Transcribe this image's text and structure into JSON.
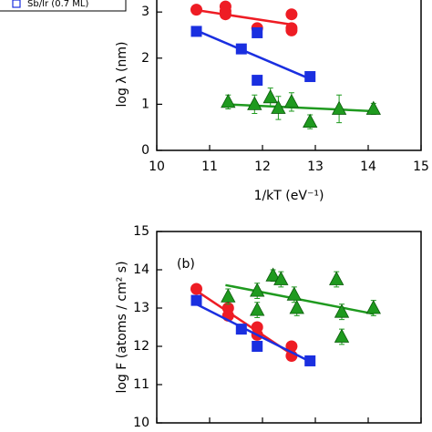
{
  "chart_data": [
    {
      "type": "scatter",
      "xlabel": "1/kT (eV⁻¹)",
      "ylabel": "log λ (nm)",
      "xlim": [
        10,
        15
      ],
      "xticks": [
        10,
        11,
        12,
        13,
        14,
        15
      ],
      "ylim": [
        0,
        3.3
      ],
      "yticks": [
        0,
        1,
        2,
        3
      ],
      "series": [
        {
          "color": "#ee1c24",
          "marker": "circle",
          "x": [
            10.75,
            11.3,
            11.3,
            11.3,
            11.9,
            12.55,
            12.55,
            12.55
          ],
          "values": [
            3.05,
            3.12,
            3.02,
            2.95,
            2.65,
            2.95,
            2.65,
            2.6
          ],
          "fit_x": [
            10.7,
            12.6
          ],
          "fit_y": [
            3.05,
            2.72
          ]
        },
        {
          "name": "Sb/Ir (0.7 ML)",
          "color": "#1a2fe0",
          "marker": "square",
          "x": [
            10.75,
            11.6,
            11.9,
            11.9,
            12.9
          ],
          "values": [
            2.58,
            2.2,
            2.55,
            1.52,
            1.6
          ],
          "fit_x": [
            10.75,
            12.9
          ],
          "fit_y": [
            2.6,
            1.55
          ]
        },
        {
          "color": "#1f9a1f",
          "marker": "triangle",
          "x": [
            11.35,
            11.85,
            12.15,
            12.3,
            12.55,
            12.9,
            13.45,
            14.1
          ],
          "values": [
            1.05,
            1.0,
            1.15,
            0.92,
            1.05,
            0.62,
            0.9,
            0.9
          ],
          "errors": [
            0.15,
            0.2,
            0.2,
            0.25,
            0.2,
            0.15,
            0.3,
            0.12
          ],
          "fit_x": [
            11.3,
            14.1
          ],
          "fit_y": [
            1.0,
            0.85
          ]
        }
      ]
    },
    {
      "type": "scatter",
      "ylabel": "log F (atoms / cm² s)",
      "annotation": "(b)",
      "xlim": [
        10,
        15
      ],
      "xticks": [
        10,
        11,
        12,
        13,
        14,
        15
      ],
      "ylim": [
        10,
        15
      ],
      "yticks": [
        10,
        11,
        12,
        13,
        14,
        15
      ],
      "series": [
        {
          "color": "#ee1c24",
          "marker": "circle",
          "x": [
            10.75,
            11.35,
            11.35,
            11.9,
            11.9,
            12.55,
            12.55
          ],
          "values": [
            13.5,
            13.0,
            12.8,
            12.5,
            12.3,
            12.0,
            11.75
          ],
          "fit_x": [
            10.75,
            12.6
          ],
          "fit_y": [
            13.45,
            11.75
          ]
        },
        {
          "color": "#1a2fe0",
          "marker": "square",
          "x": [
            10.75,
            11.6,
            11.9,
            12.9
          ],
          "values": [
            13.2,
            12.45,
            12.0,
            11.62
          ],
          "fit_x": [
            10.75,
            12.9
          ],
          "fit_y": [
            13.1,
            11.6
          ]
        },
        {
          "color": "#1f9a1f",
          "marker": "triangle",
          "x": [
            11.35,
            11.9,
            11.9,
            12.2,
            12.35,
            12.6,
            12.65,
            13.4,
            13.5,
            13.5,
            14.1
          ],
          "values": [
            13.3,
            13.45,
            12.95,
            13.85,
            13.75,
            13.35,
            13.0,
            13.75,
            12.9,
            12.25,
            13.0
          ],
          "errors": [
            0.2,
            0.2,
            0.2,
            0.15,
            0.2,
            0.2,
            0.2,
            0.2,
            0.2,
            0.2,
            0.2
          ],
          "fit_x": [
            11.3,
            14.1
          ],
          "fit_y": [
            13.6,
            12.85
          ]
        }
      ]
    }
  ]
}
